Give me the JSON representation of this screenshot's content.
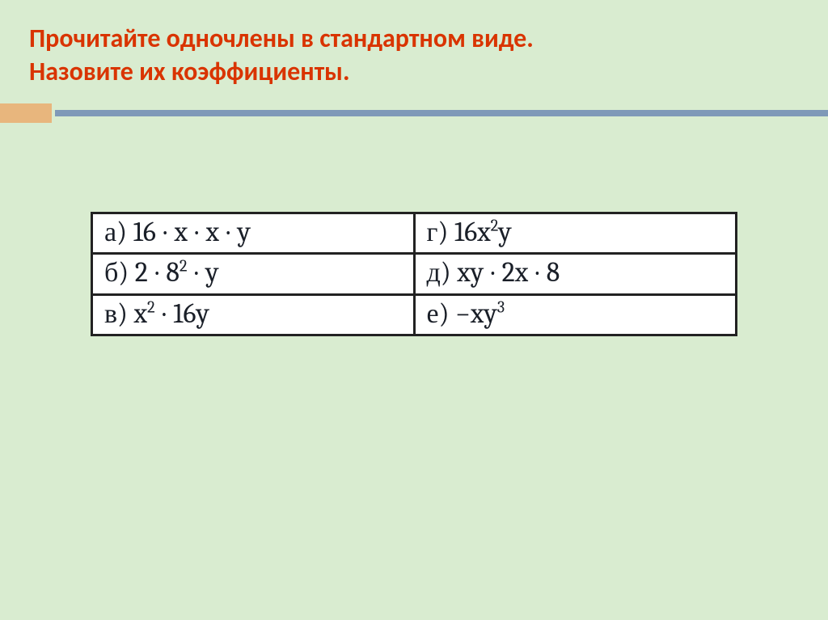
{
  "slide": {
    "title_line1": "Прочитайте одночлены  в стандартном виде.",
    "title_line2": "Назовите их коэффициенты.",
    "title_color": "#d93400",
    "background_color": "#d9ecd0",
    "accent_square_color": "#e8b67d",
    "accent_line_color": "#7f99b8"
  },
  "table": {
    "type": "table",
    "columns": 2,
    "rows": 3,
    "border_color": "#222222",
    "cell_background": "#ffffff",
    "text_color": "#1a1f28",
    "font_family": "Cambria Math",
    "font_size_pt": 26,
    "cells": {
      "r0c0": {
        "label": "а)",
        "expr_html": "16 · x · x · y",
        "plain": "16·x·x·y"
      },
      "r0c1": {
        "label": "г)",
        "expr_html": "16x<sup>2</sup>y",
        "plain": "16x^2 y"
      },
      "r1c0": {
        "label": "б)",
        "expr_html": "2 · 8<sup>2</sup> · y",
        "plain": "2·8^2·y"
      },
      "r1c1": {
        "label": "д)",
        "expr_html": "xy · 2x · 8",
        "plain": "xy·2x·8"
      },
      "r2c0": {
        "label": "в)",
        "expr_html": "x<sup>2</sup> · 16y",
        "plain": "x^2·16y"
      },
      "r2c1": {
        "label": "е)",
        "expr_html": "−xy<sup>3</sup>",
        "plain": "−xy^3"
      }
    }
  }
}
